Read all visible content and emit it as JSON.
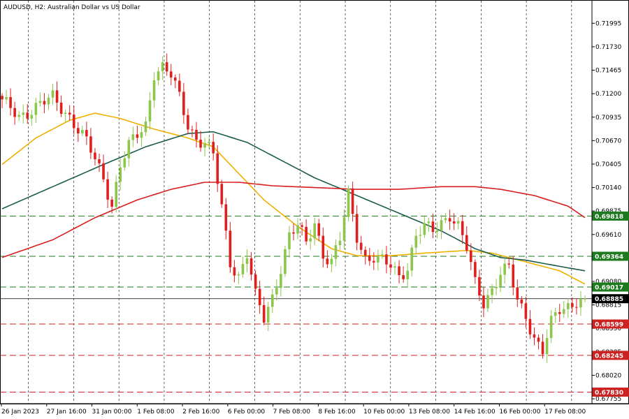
{
  "chart_data": {
    "type": "candlestick",
    "title": "AUDUSD, H2:  Australian Dollar vs US Dollar",
    "ylim": [
      0.677,
      0.7225
    ],
    "y_ticks": [
      "0.71995",
      "0.71730",
      "0.71465",
      "0.71200",
      "0.70935",
      "0.70670",
      "0.70405",
      "0.70140",
      "0.69875",
      "0.69610",
      "0.69350",
      "0.69080",
      "0.68815",
      "0.68550",
      "0.68285",
      "0.68020",
      "0.67755"
    ],
    "x_ticks": [
      "26 Jan 2023",
      "27 Jan 16:00",
      "31 Jan 00:00",
      "1 Feb 08:00",
      "2 Feb 16:00",
      "6 Feb 00:00",
      "7 Feb 08:00",
      "8 Feb 16:00",
      "10 Feb 00:00",
      "13 Feb 08:00",
      "14 Feb 16:00",
      "16 Feb 00:00",
      "17 Feb 08:00"
    ],
    "current_price": {
      "value": 0.68885,
      "label": "0.68885"
    },
    "horizontal_levels": [
      {
        "value": 0.69818,
        "label": "0.69818",
        "color": "#1e7a1e",
        "style": "dashed"
      },
      {
        "value": 0.69364,
        "label": "0.69364",
        "color": "#1e7a1e",
        "style": "dashed"
      },
      {
        "value": 0.69017,
        "label": "0.69017",
        "color": "#1e7a1e",
        "style": "dashed"
      },
      {
        "value": 0.68599,
        "label": "0.68599",
        "color": "#cc2222",
        "style": "dashed"
      },
      {
        "value": 0.68245,
        "label": "0.68245",
        "color": "#cc2222",
        "style": "dashed"
      },
      {
        "value": 0.6783,
        "label": "0.67830",
        "color": "#cc2222",
        "style": "dashed"
      }
    ],
    "moving_averages": [
      {
        "color": "#f0b000",
        "key_points": [
          [
            0,
            0.704
          ],
          [
            8,
            0.707
          ],
          [
            16,
            0.709
          ],
          [
            22,
            0.7098
          ],
          [
            28,
            0.7092
          ],
          [
            36,
            0.708
          ],
          [
            44,
            0.707
          ],
          [
            50,
            0.706
          ],
          [
            56,
            0.703
          ],
          [
            62,
            0.7
          ],
          [
            70,
            0.697
          ],
          [
            78,
            0.6945
          ],
          [
            84,
            0.6937
          ],
          [
            92,
            0.6937
          ],
          [
            100,
            0.694
          ],
          [
            110,
            0.6943
          ],
          [
            116,
            0.694
          ],
          [
            124,
            0.693
          ],
          [
            132,
            0.692
          ],
          [
            138,
            0.6905
          ]
        ]
      },
      {
        "color": "#1a5c4a",
        "key_points": [
          [
            0,
            0.699
          ],
          [
            12,
            0.7015
          ],
          [
            24,
            0.704
          ],
          [
            34,
            0.706
          ],
          [
            44,
            0.7075
          ],
          [
            50,
            0.7077
          ],
          [
            58,
            0.7065
          ],
          [
            66,
            0.7045
          ],
          [
            74,
            0.7025
          ],
          [
            84,
            0.7005
          ],
          [
            94,
            0.6985
          ],
          [
            104,
            0.6965
          ],
          [
            112,
            0.6945
          ],
          [
            118,
            0.6935
          ],
          [
            124,
            0.6932
          ],
          [
            132,
            0.6925
          ],
          [
            138,
            0.692
          ]
        ]
      },
      {
        "color": "#d81e1e",
        "key_points": [
          [
            0,
            0.6935
          ],
          [
            12,
            0.6955
          ],
          [
            22,
            0.698
          ],
          [
            32,
            0.7
          ],
          [
            40,
            0.7012
          ],
          [
            48,
            0.702
          ],
          [
            56,
            0.702
          ],
          [
            64,
            0.7016
          ],
          [
            74,
            0.7014
          ],
          [
            84,
            0.7012
          ],
          [
            94,
            0.7012
          ],
          [
            104,
            0.7015
          ],
          [
            112,
            0.7015
          ],
          [
            118,
            0.7012
          ],
          [
            126,
            0.7005
          ],
          [
            134,
            0.6993
          ],
          [
            138,
            0.698
          ]
        ]
      }
    ],
    "price_path": [
      [
        0,
        0.711
      ],
      [
        4,
        0.7095
      ],
      [
        8,
        0.7105
      ],
      [
        12,
        0.7115
      ],
      [
        16,
        0.7095
      ],
      [
        20,
        0.7065
      ],
      [
        24,
        0.7025
      ],
      [
        26,
        0.6995
      ],
      [
        28,
        0.704
      ],
      [
        30,
        0.706
      ],
      [
        34,
        0.7085
      ],
      [
        36,
        0.7145
      ],
      [
        38,
        0.715
      ],
      [
        40,
        0.714
      ],
      [
        42,
        0.7115
      ],
      [
        44,
        0.7085
      ],
      [
        46,
        0.707
      ],
      [
        48,
        0.7065
      ],
      [
        50,
        0.705
      ],
      [
        52,
        0.699
      ],
      [
        54,
        0.693
      ],
      [
        56,
        0.6915
      ],
      [
        58,
        0.694
      ],
      [
        60,
        0.689
      ],
      [
        62,
        0.6865
      ],
      [
        64,
        0.689
      ],
      [
        66,
        0.6925
      ],
      [
        68,
        0.696
      ],
      [
        70,
        0.697
      ],
      [
        72,
        0.695
      ],
      [
        74,
        0.6975
      ],
      [
        76,
        0.694
      ],
      [
        78,
        0.693
      ],
      [
        80,
        0.6955
      ],
      [
        82,
        0.7005
      ],
      [
        84,
        0.696
      ],
      [
        86,
        0.6935
      ],
      [
        88,
        0.6935
      ],
      [
        90,
        0.693
      ],
      [
        92,
        0.6925
      ],
      [
        94,
        0.6915
      ],
      [
        96,
        0.6925
      ],
      [
        98,
        0.696
      ],
      [
        100,
        0.6968
      ],
      [
        102,
        0.6965
      ],
      [
        104,
        0.6975
      ],
      [
        106,
        0.6985
      ],
      [
        108,
        0.697
      ],
      [
        110,
        0.6945
      ],
      [
        112,
        0.6905
      ],
      [
        114,
        0.6885
      ],
      [
        116,
        0.69
      ],
      [
        118,
        0.6918
      ],
      [
        120,
        0.6922
      ],
      [
        122,
        0.6885
      ],
      [
        124,
        0.687
      ],
      [
        126,
        0.6845
      ],
      [
        128,
        0.683
      ],
      [
        130,
        0.686
      ],
      [
        132,
        0.6875
      ],
      [
        134,
        0.688
      ],
      [
        136,
        0.6888
      ]
    ]
  }
}
